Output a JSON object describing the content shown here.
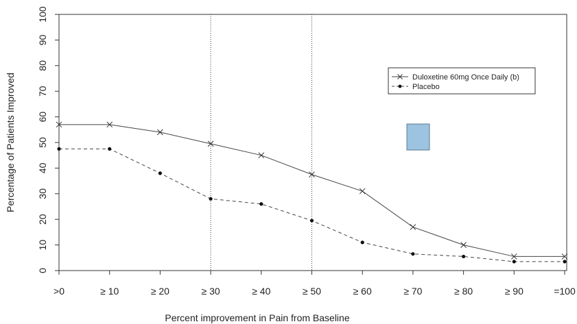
{
  "chart_data": {
    "type": "line",
    "title": "",
    "xlabel": "Percent improvement in Pain from Baseline",
    "ylabel": "Percentage of Patients Improved",
    "categories": [
      ">0",
      "≥ 10",
      "≥ 20",
      "≥ 30",
      "≥ 40",
      "≥ 50",
      "≥ 60",
      "≥ 70",
      "≥ 80",
      "≥ 90",
      "=100"
    ],
    "ylim": [
      0,
      100
    ],
    "yticks": [
      0,
      10,
      20,
      30,
      40,
      50,
      60,
      70,
      80,
      90,
      100
    ],
    "grid": false,
    "legend_position": "top-right",
    "reference_lines_at_categories": [
      "≥ 30",
      "≥ 50"
    ],
    "series": [
      {
        "name": "Duloxetine 60mg Once Daily (b)",
        "marker": "x",
        "line": "solid",
        "values": [
          57,
          57,
          54,
          49.5,
          45,
          37.5,
          31,
          17,
          10,
          5.5,
          5.5
        ]
      },
      {
        "name": "Placebo",
        "marker": "dot",
        "line": "dashed",
        "values": [
          47.5,
          47.5,
          38,
          28,
          26,
          19.5,
          11,
          6.5,
          5.5,
          3.5,
          3.5
        ]
      }
    ],
    "annotation_box_color": "#9cc3df",
    "annotation_box_stroke": "#5a7a92"
  }
}
